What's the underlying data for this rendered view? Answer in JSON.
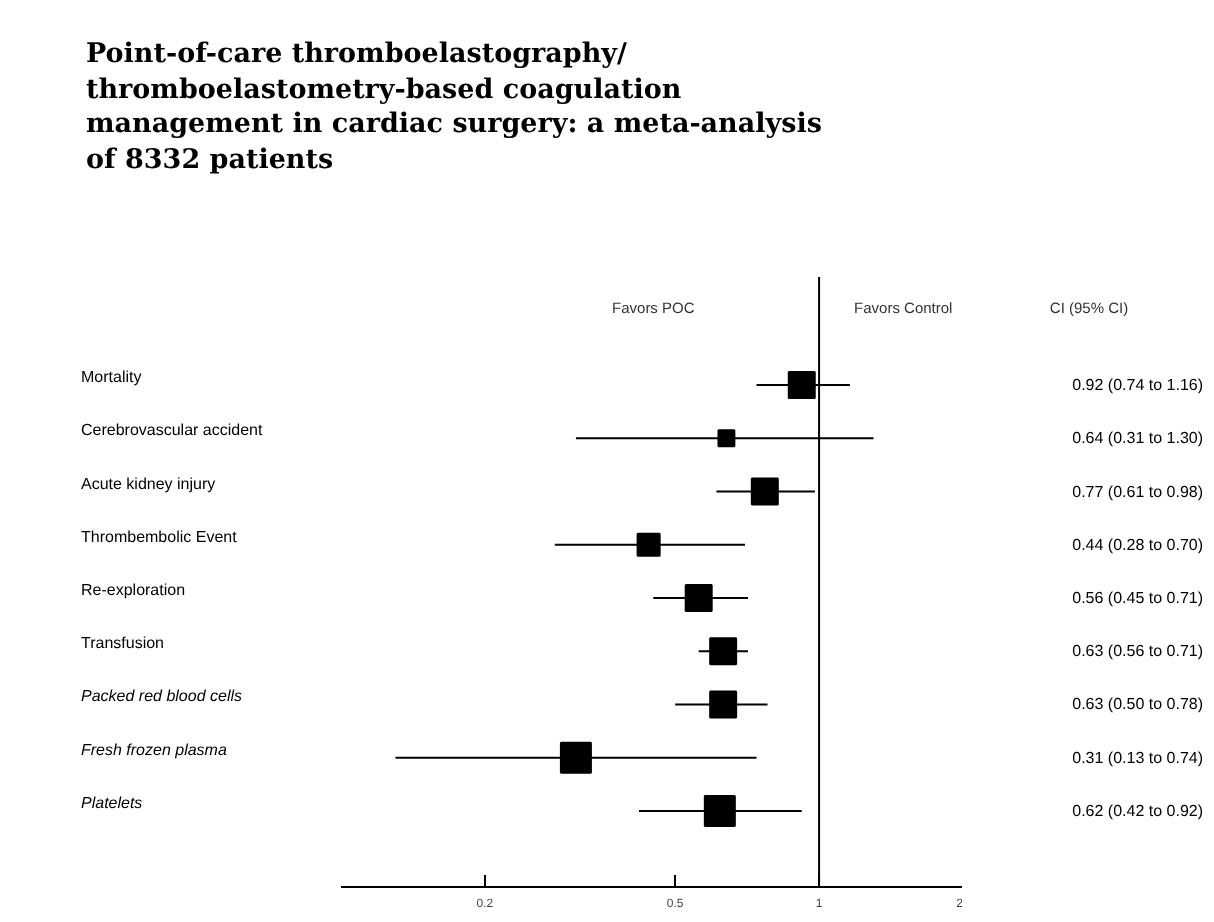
{
  "chart_data": {
    "type": "bubble",
    "orientation": "horizontal",
    "title": "Point-of-care thromboelastography/\nthromboelastometry-based coagulation\nmanagement in cardiac surgery: a meta-analysis\nof 8332 patients",
    "categories": [
      "Mortality",
      "Cerebrovascular accident",
      "Acute kidney injury",
      "Thrombembolic Event",
      "Re-exploration",
      "Transfusion",
      "Packed red blood cells",
      "Fresh frozen plasma",
      "Platelets"
    ],
    "color": "#000000",
    "values": [
      0.92,
      0.64,
      0.77,
      0.44,
      0.56,
      0.63,
      0.63,
      0.31,
      0.62
    ],
    "errors": [
      [
        0.74,
        1.16
      ],
      [
        0.31,
        1.3
      ],
      [
        0.61,
        0.98
      ],
      [
        0.28,
        0.7
      ],
      [
        0.45,
        0.71
      ],
      [
        0.56,
        0.71
      ],
      [
        0.5,
        0.78
      ],
      [
        0.13,
        0.74
      ],
      [
        0.42,
        0.92
      ]
    ],
    "sizes": [
      0.75,
      0.28,
      0.75,
      0.54,
      0.75,
      0.75,
      0.75,
      1,
      1
    ],
    "value_labels": [
      "0.92 (0.74 to 1.16)",
      "0.64 (0.31 to 1.30)",
      "0.77 (0.61 to 0.98)",
      "0.44 (0.28 to 0.70)",
      "0.56 (0.45 to 0.71)",
      "0.63 (0.56 to 0.71)",
      "0.63 (0.50 to 0.78)",
      "0.31 (0.13 to 0.74)",
      "0.62 (0.42 to 0.92)"
    ],
    "marker": "square",
    "log": "x",
    "xlim": [
      0.1,
      2
    ],
    "xticks": [
      0.2,
      0.5,
      1,
      2
    ],
    "ref_lines": [
      {
        "axis": "x",
        "value": 1,
        "color": "#000000"
      }
    ],
    "annotations": [
      "Favors POC",
      "Favors Control",
      "CI (95% CI)"
    ],
    "grid": false
  }
}
